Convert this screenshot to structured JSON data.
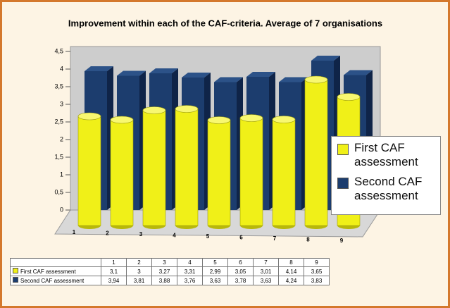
{
  "chart_data": {
    "type": "bar3d",
    "title": "Improvement within each of the CAF-criteria. Average of 7 organisations",
    "categories": [
      "1",
      "2",
      "3",
      "4",
      "5",
      "6",
      "7",
      "8",
      "9"
    ],
    "series": [
      {
        "name": "First CAF assessment",
        "color": "#f0f018",
        "values": [
          3.1,
          3,
          3.27,
          3.31,
          2.99,
          3.05,
          3.01,
          4.14,
          3.65
        ],
        "value_labels": [
          "3,1",
          "3",
          "3,27",
          "3,31",
          "2,99",
          "3,05",
          "3,01",
          "4,14",
          "3,65"
        ]
      },
      {
        "name": "Second CAF assessment",
        "color": "#1c3d6e",
        "values": [
          3.94,
          3.81,
          3.88,
          3.76,
          3.63,
          3.78,
          3.63,
          4.24,
          3.83
        ],
        "value_labels": [
          "3,94",
          "3,81",
          "3,88",
          "3,76",
          "3,63",
          "3,78",
          "3,63",
          "4,24",
          "3,83"
        ]
      }
    ],
    "ylim": [
      0,
      4.5
    ],
    "yticks": [
      0,
      {
        "value": 0.5,
        "label": "0,5"
      },
      1,
      {
        "value": 1.5,
        "label": "1,5"
      },
      2,
      {
        "value": 2.5,
        "label": "2,5"
      },
      3,
      {
        "value": 3.5,
        "label": "3,5"
      },
      4,
      {
        "value": 4.5,
        "label": "4,5"
      }
    ]
  }
}
